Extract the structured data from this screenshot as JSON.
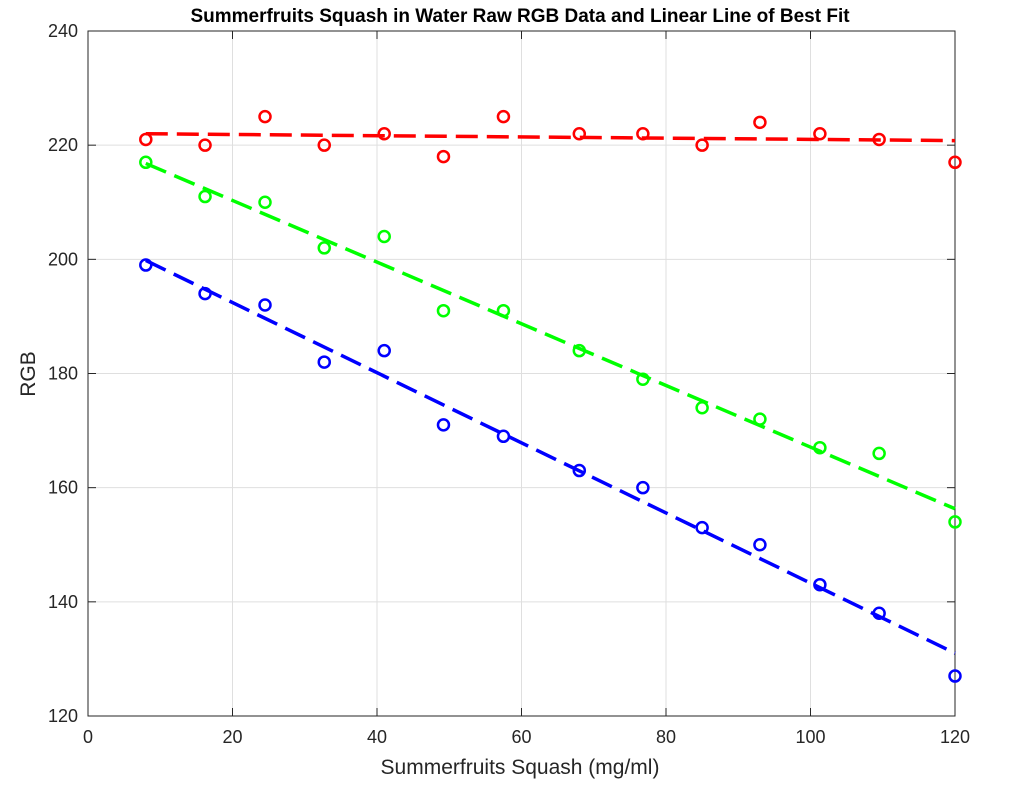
{
  "chart_data": {
    "type": "scatter",
    "title": "Summerfruits Squash in Water Raw RGB Data and Linear Line of Best Fit",
    "xlabel": "Summerfruits Squash (mg/ml)",
    "ylabel": "RGB",
    "xlim": [
      0,
      120
    ],
    "ylim": [
      120,
      240
    ],
    "xticks": [
      0,
      20,
      40,
      60,
      80,
      100,
      120
    ],
    "yticks": [
      120,
      140,
      160,
      180,
      200,
      220,
      240
    ],
    "grid": true,
    "legend": "none",
    "x": [
      8,
      16.2,
      24.5,
      32.7,
      41,
      49.2,
      57.5,
      68,
      76.8,
      85,
      93,
      101.3,
      109.5,
      120
    ],
    "series": [
      {
        "name": "Red",
        "color": "#ff0000",
        "values": [
          221,
          220,
          225,
          220,
          222,
          218,
          225,
          222,
          222,
          220,
          224,
          222,
          221,
          217
        ],
        "fit": {
          "x": [
            8,
            120
          ],
          "y": [
            222,
            220.8
          ]
        }
      },
      {
        "name": "Green",
        "color": "#00ff00",
        "values": [
          217,
          211,
          210,
          202,
          204,
          191,
          191,
          184,
          179,
          174,
          172,
          167,
          166,
          154
        ],
        "fit": {
          "x": [
            8,
            120
          ],
          "y": [
            216.8,
            156.3
          ]
        }
      },
      {
        "name": "Blue",
        "color": "#0000ff",
        "values": [
          199,
          194,
          192,
          182,
          184,
          171,
          169,
          163,
          160,
          153,
          150,
          143,
          138,
          127
        ],
        "fit": {
          "x": [
            8,
            120
          ],
          "y": [
            199.8,
            131
          ]
        }
      }
    ]
  }
}
